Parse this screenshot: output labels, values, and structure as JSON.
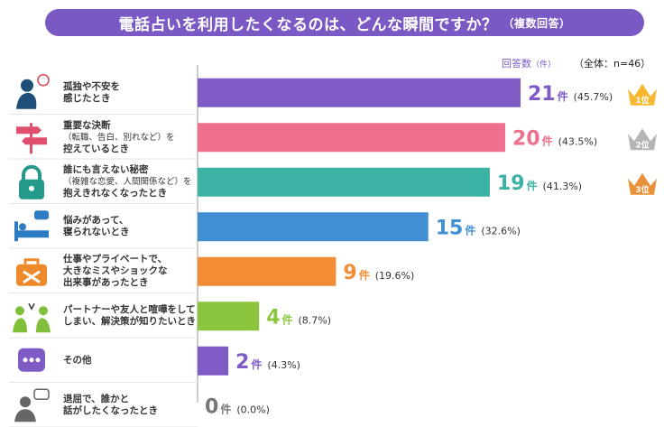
{
  "title": {
    "main": "電話占いを利用したくなるのは、どんな瞬間ですか？",
    "sub": "（複数回答）"
  },
  "meta": {
    "unit_label": "回答数",
    "unit_small": "（件）",
    "total": "（全体：n=46）"
  },
  "chart_data": {
    "type": "bar",
    "orientation": "horizontal",
    "categories": [
      [
        "孤独や不安を",
        "感じたとき"
      ],
      [
        "重要な決断",
        "（転職、告白、別れなど）を",
        "控えているとき"
      ],
      [
        "誰にも言えない秘密",
        "（複雑な恋愛、人間関係など）を",
        "抱えきれなくなったとき"
      ],
      [
        "悩みがあって、",
        "寝られないとき"
      ],
      [
        "仕事やプライベートで、",
        "大きなミスやショックな",
        "出来事があったとき"
      ],
      [
        "パートナーや友人と喧嘩をして",
        "しまい、解決策が知りたいとき"
      ],
      [
        "その他"
      ],
      [
        "退屈で、誰かと",
        "話がしたくなったとき"
      ]
    ],
    "values": [
      21,
      20,
      19,
      15,
      9,
      4,
      2,
      0
    ],
    "percent_labels": [
      "(45.7%)",
      "(43.5%)",
      "(41.3%)",
      "(32.6%)",
      "(19.6%)",
      "(8.7%)",
      "(4.3%)",
      "(0.0%)"
    ],
    "count_suffix": "件",
    "colors": [
      "#7f5bc6",
      "#ee6f8e",
      "#3bb3a4",
      "#3f8fd2",
      "#f28d35",
      "#8cc63f",
      "#7f5bc6",
      "#999999"
    ],
    "ranks": [
      {
        "label": "1位",
        "color": "#f5b82e"
      },
      {
        "label": "2位",
        "color": "#b5b5b5"
      },
      {
        "label": "3位",
        "color": "#e8913a"
      }
    ],
    "icons": [
      "lonely-person-icon",
      "signpost-icon",
      "padlock-icon",
      "sleepless-bed-icon",
      "briefcase-tools-icon",
      "arguing-people-icon",
      "speech-bubble-dots-icon",
      "chatting-person-icon"
    ],
    "icon_colors": [
      "#1f4e79",
      "#e0506e",
      "#24998a",
      "#2c7cc2",
      "#ef8a2a",
      "#7fbf3a",
      "#7f5bc6",
      "#666666"
    ],
    "xlim": [
      0,
      21
    ]
  }
}
